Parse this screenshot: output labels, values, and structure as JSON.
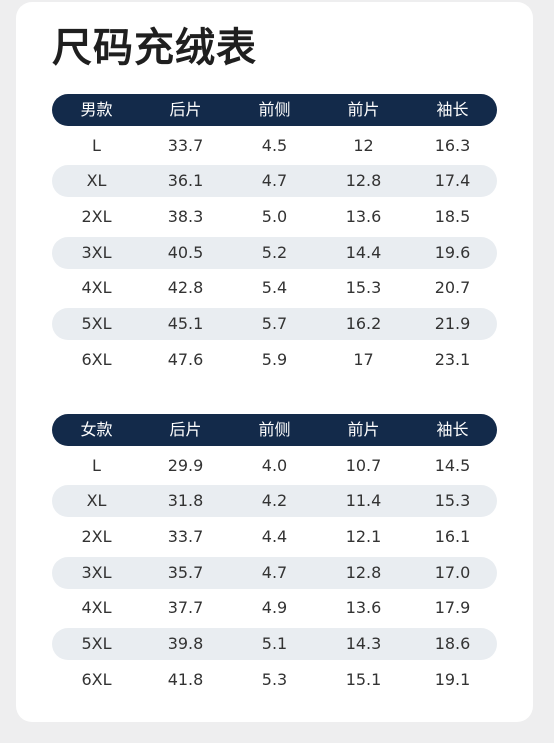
{
  "title": "尺码充绒表",
  "tables": [
    {
      "headers": [
        "男款",
        "后片",
        "前侧",
        "前片",
        "袖长"
      ],
      "rows": [
        [
          "L",
          "33.7",
          "4.5",
          "12",
          "16.3"
        ],
        [
          "XL",
          "36.1",
          "4.7",
          "12.8",
          "17.4"
        ],
        [
          "2XL",
          "38.3",
          "5.0",
          "13.6",
          "18.5"
        ],
        [
          "3XL",
          "40.5",
          "5.2",
          "14.4",
          "19.6"
        ],
        [
          "4XL",
          "42.8",
          "5.4",
          "15.3",
          "20.7"
        ],
        [
          "5XL",
          "45.1",
          "5.7",
          "16.2",
          "21.9"
        ],
        [
          "6XL",
          "47.6",
          "5.9",
          "17",
          "23.1"
        ]
      ]
    },
    {
      "headers": [
        "女款",
        "后片",
        "前侧",
        "前片",
        "袖长"
      ],
      "rows": [
        [
          "L",
          "29.9",
          "4.0",
          "10.7",
          "14.5"
        ],
        [
          "XL",
          "31.8",
          "4.2",
          "11.4",
          "15.3"
        ],
        [
          "2XL",
          "33.7",
          "4.4",
          "12.1",
          "16.1"
        ],
        [
          "3XL",
          "35.7",
          "4.7",
          "12.8",
          "17.0"
        ],
        [
          "4XL",
          "37.7",
          "4.9",
          "13.6",
          "17.9"
        ],
        [
          "5XL",
          "39.8",
          "5.1",
          "14.3",
          "18.6"
        ],
        [
          "6XL",
          "41.8",
          "5.3",
          "15.1",
          "19.1"
        ]
      ]
    }
  ],
  "colors": {
    "header_bg": "#132a4a",
    "stripe_bg": "#e9edf1",
    "page_bg": "#eeeeef",
    "card_bg": "#ffffff"
  }
}
